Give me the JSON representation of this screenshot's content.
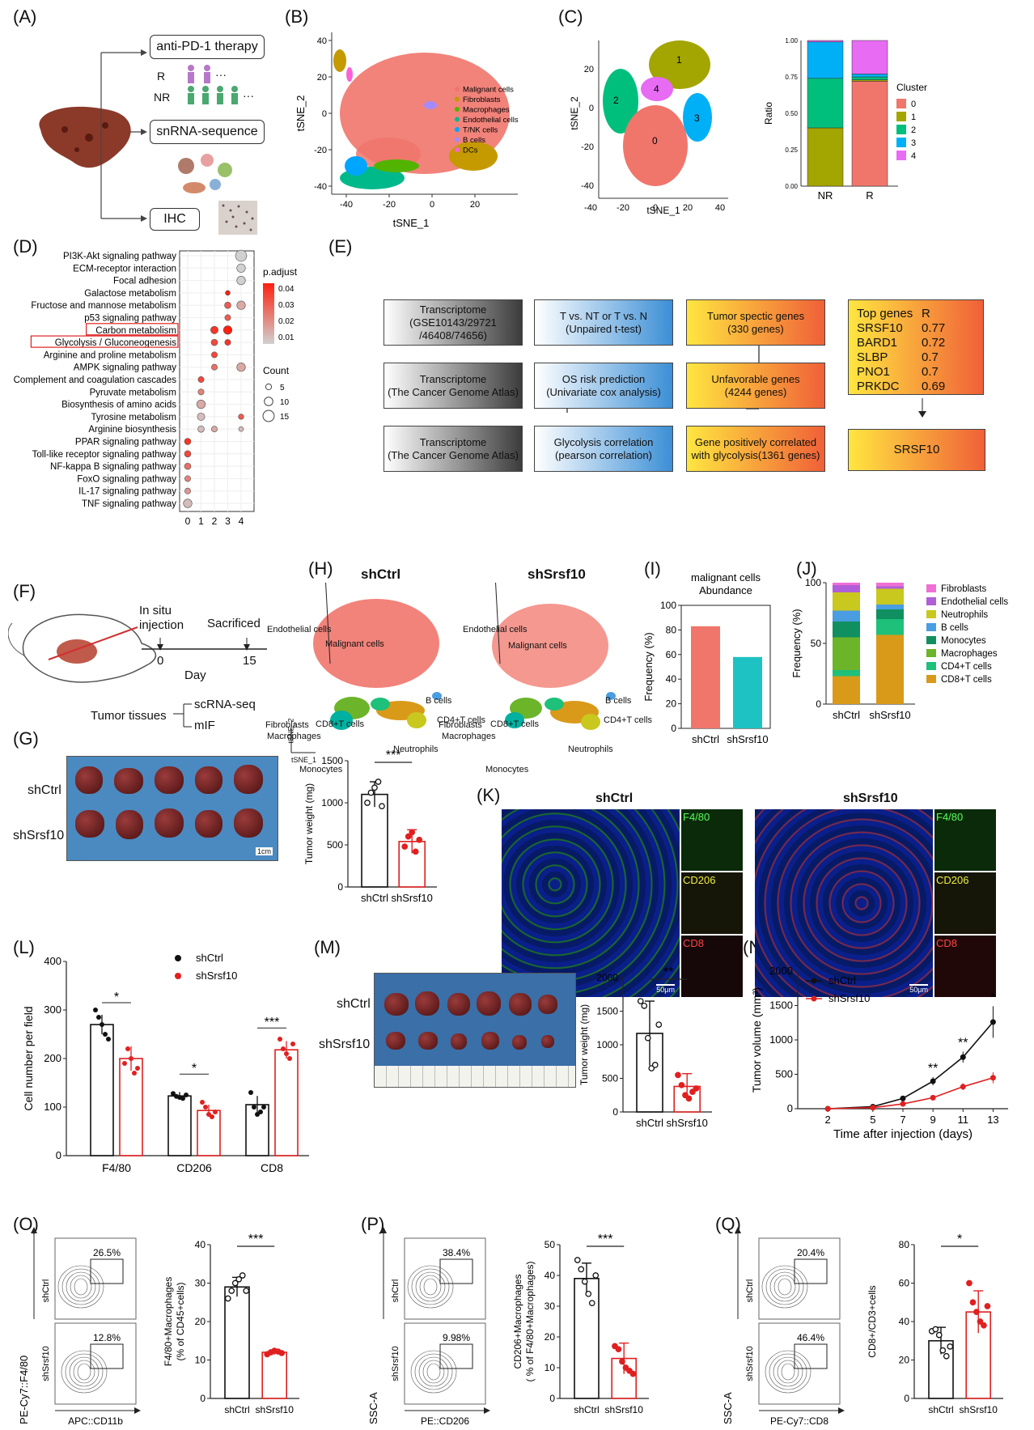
{
  "labels": {
    "A": "(A)",
    "B": "(B)",
    "C": "(C)",
    "D": "(D)",
    "E": "(E)",
    "F": "(F)",
    "G": "(G)",
    "H": "(H)",
    "I": "(I)",
    "J": "(J)",
    "K": "(K)",
    "L": "(L)",
    "M": "(M)",
    "N": "(N)",
    "O": "(O)",
    "P": "(P)",
    "Q": "(Q)"
  },
  "panelA": {
    "box1": "anti-PD-1 therapy",
    "r": "R",
    "nr": "NR",
    "dots": "···",
    "box2": "snRNA-sequence",
    "box3": "IHC"
  },
  "panelB": {
    "xlabel": "tSNE_1",
    "ylabel": "tSNE_2",
    "xticks": [
      "-40",
      "-20",
      "0",
      "20"
    ],
    "yticks": [
      "40",
      "20",
      "0",
      "-20",
      "-40"
    ],
    "legend": [
      {
        "name": "Malignant cells",
        "color": "#f0766b"
      },
      {
        "name": "Fibroblasts",
        "color": "#c49a00"
      },
      {
        "name": "Macrophages",
        "color": "#53b400"
      },
      {
        "name": "Endothelial cells",
        "color": "#00b98b"
      },
      {
        "name": "T/NK cells",
        "color": "#00a5ff"
      },
      {
        "name": "B cells",
        "color": "#a58aff"
      },
      {
        "name": "DCs",
        "color": "#fb61d7"
      }
    ]
  },
  "panelC": {
    "xlabel": "tSNE_1",
    "ylabel": "tSNE_2",
    "xticks": [
      "-40",
      "-20",
      "0",
      "20",
      "40"
    ],
    "yticks": [
      "20",
      "0",
      "-20",
      "-40"
    ],
    "clusters": [
      "0",
      "1",
      "2",
      "3",
      "4"
    ],
    "bar_ylabel": "Ratio",
    "bar_yticks": [
      "1.00",
      "0.75",
      "0.50",
      "0.25",
      "0.00"
    ],
    "legend_title": "Cluster"
  },
  "panelD": {
    "legend_title": "p.adjust",
    "legend_vals": [
      "0.04",
      "0.03",
      "0.02",
      "0.01"
    ],
    "count_title": "Count",
    "count_vals": [
      "5",
      "10",
      "15"
    ],
    "xticks": [
      "0",
      "1",
      "2",
      "3",
      "4"
    ]
  },
  "panelE": {
    "row1": [
      "Transcriptome\n(GSE10143/29721\n/46408/74656)",
      "T vs. NT or T vs. N\n(Unpaired t-test)",
      "Tumor spectic genes\n(330 genes)"
    ],
    "row2": [
      "Transcriptome\n(The Cancer Genome Atlas)",
      "OS risk prediction\n(Univariate cox analysis)",
      "Unfavorable genes\n(4244 genes)"
    ],
    "row3": [
      "Transcriptome\n(The Cancer Genome Atlas)",
      "Glycolysis correlation\n(pearson correlation)",
      "Gene positively correlated\nwith glycolysis(1361 genes)"
    ],
    "top_header": [
      "Top genes",
      "R"
    ],
    "top_genes": [
      [
        "SRSF10",
        "0.77"
      ],
      [
        "BARD1",
        "0.72"
      ],
      [
        "SLBP",
        "0.7"
      ],
      [
        "PNO1",
        "0.7"
      ],
      [
        "PRKDC",
        "0.69"
      ]
    ],
    "result": "SRSF10"
  },
  "panelF": {
    "injection": "In situ\ninjection",
    "sacrificed": "Sacrificed",
    "t0": "0",
    "t15": "15",
    "day": "Day",
    "tissues": "Tumor tissues",
    "scrna": "scRNA-seq",
    "mif": "mIF"
  },
  "panelG": {
    "shctrl": "shCtrl",
    "shsrsf10": "shSrsf10",
    "scale": "1cm",
    "ylabel": "Tumor weight (mg)",
    "yticks": [
      "1500",
      "1000",
      "500",
      "0"
    ],
    "sig": "***",
    "xcats": [
      "shCtrl",
      "shSrsf10"
    ]
  },
  "panelH": {
    "left_title": "shCtrl",
    "right_title": "shSrsf10",
    "labels": [
      "Endothelial cells",
      "Malignant cells",
      "Fibroblasts",
      "Macrophages",
      "B cells",
      "CD4+T cells",
      "CD8+T cells",
      "Monocytes",
      "Neutrophils"
    ],
    "axis_y": "tSNE_2",
    "axis_x": "tSNE_1"
  },
  "panelI": {
    "title": "malignant cells\nAbundance",
    "ylabel": "Frequency (%)",
    "yticks": [
      "100",
      "80",
      "60",
      "40",
      "20",
      "0"
    ],
    "xcats": [
      "shCtrl",
      "shSrsf10"
    ]
  },
  "panelJ": {
    "ylabel": "Frequency (%)",
    "yticks": [
      "100",
      "50",
      "0"
    ],
    "xcats": [
      "shCtrl",
      "shSrsf10"
    ],
    "legend": [
      {
        "name": "Fibroblasts",
        "color": "#f06fd4"
      },
      {
        "name": "Endothelial cells",
        "color": "#b05fd8"
      },
      {
        "name": "Neutrophils",
        "color": "#c8c81e"
      },
      {
        "name": "B cells",
        "color": "#4a9de0"
      },
      {
        "name": "Monocytes",
        "color": "#109060"
      },
      {
        "name": "Macrophages",
        "color": "#6cb42a"
      },
      {
        "name": "CD4+T cells",
        "color": "#1ec07a"
      },
      {
        "name": "CD8+T cells",
        "color": "#d99a1a"
      }
    ]
  },
  "panelK": {
    "left_title": "shCtrl",
    "right_title": "shSrsf10",
    "f480": "F4/80",
    "cd206": "CD206",
    "cd8": "CD8",
    "scale": "50μm"
  },
  "panelL": {
    "ylabel": "Cell number per field",
    "yticks": [
      "400",
      "300",
      "200",
      "100",
      "0"
    ],
    "xcats": [
      "F4/80",
      "CD206",
      "CD8"
    ],
    "legend": [
      "shCtrl",
      "shSrsf10"
    ],
    "sigs": [
      "*",
      "*",
      "***"
    ]
  },
  "panelM": {
    "shctrl": "shCtrl",
    "shsrsf10": "shSrsf10",
    "ylabel": "Tumor weight (mg)",
    "yticks": [
      "2000",
      "1500",
      "1000",
      "500",
      "0"
    ],
    "sig": "**",
    "xcats": [
      "shCtrl",
      "shSrsf10"
    ]
  },
  "panelN": {
    "ylabel": "Tumor volume (mm³)",
    "xlabel": "Time after injection (days)",
    "yticks": [
      "2000",
      "1500",
      "1000",
      "500",
      "0"
    ],
    "xticks": [
      "2",
      "5",
      "7",
      "9",
      "11",
      "13"
    ],
    "legend": [
      "shCtrl",
      "shSrsf10"
    ],
    "sigs": [
      "**",
      "**",
      "*"
    ]
  },
  "panelO": {
    "ylabel": "PE-Cy7::F4/80",
    "xlabel": "APC::CD11b",
    "top_row": "shCtrl",
    "bottom_row": "shSrsf10",
    "pct1": "26.5%",
    "pct2": "12.8%",
    "bar_ylabel": "F4/80+Macrophages\n(% of CD45+cells)",
    "yticks": [
      "40",
      "30",
      "20",
      "10",
      "0"
    ],
    "sig": "***",
    "xcats": [
      "shCtrl",
      "shSrsf10"
    ]
  },
  "panelP": {
    "ylabel": "SSC-A",
    "xlabel": "PE::CD206",
    "top_row": "shCtrl",
    "bottom_row": "shSrsf10",
    "pct1": "38.4%",
    "pct2": "9.98%",
    "bar_ylabel": "CD206+Macrophages\n( % of F4/80+Macrophages)",
    "yticks": [
      "50",
      "40",
      "30",
      "20",
      "10",
      "0"
    ],
    "sig": "***",
    "xcats": [
      "shCtrl",
      "shSrsf10"
    ]
  },
  "panelQ": {
    "ylabel": "SSC-A",
    "xlabel": "PE-Cy7::CD8",
    "top_row": "shCtrl",
    "bottom_row": "shSrsf10",
    "pct1": "20.4%",
    "pct2": "46.4%",
    "bar_ylabel": "CD8+/CD3+cells",
    "yticks": [
      "80",
      "60",
      "40",
      "20",
      "0"
    ],
    "sig": "*",
    "xcats": [
      "shCtrl",
      "shSrsf10"
    ]
  },
  "chart_data": [
    {
      "type": "bar",
      "panel": "C-right",
      "categories": [
        "NR",
        "R"
      ],
      "ylabel": "Ratio",
      "ylim": [
        0,
        1
      ],
      "series": [
        {
          "name": "0",
          "values": [
            0,
            0.72
          ]
        },
        {
          "name": "1",
          "values": [
            0.4,
            0.01
          ]
        },
        {
          "name": "2",
          "values": [
            0.34,
            0.02
          ]
        },
        {
          "name": "3",
          "values": [
            0.25,
            0.02
          ]
        },
        {
          "name": "4",
          "values": [
            0.01,
            0.23
          ]
        }
      ],
      "colors": [
        "#f0766b",
        "#a3a500",
        "#00bf7d",
        "#00b0f6",
        "#e76bf3"
      ]
    },
    {
      "type": "scatter",
      "panel": "D",
      "xticks": [
        "0",
        "1",
        "2",
        "3",
        "4"
      ],
      "categories": [
        "PI3K-Akt signaling pathway",
        "ECM-receptor interaction",
        "Focal adhesion",
        "Galactose metabolism",
        "Fructose and mannose metabolism",
        "p53 signaling pathway",
        "Carbon metabolism",
        "Glycolysis / Gluconeogenesis",
        "Arginine and proline metabolism",
        "AMPK signaling pathway",
        "Complement and coagulation cascades",
        "Pyruvate metabolism",
        "Biosynthesis of amino acids",
        "Tyrosine metabolism",
        "Arginine biosynthesis",
        "PPAR signaling pathway",
        "Toll-like receptor signaling pathway",
        "NF-kappa B signaling pathway",
        "FoxO signaling pathway",
        "IL-17 signaling pathway",
        "TNF signaling pathway"
      ],
      "highlighted": [
        "Carbon metabolism",
        "Glycolysis / Gluconeogenesis"
      ],
      "points": [
        {
          "row": 0,
          "x": 4,
          "count": 15,
          "p": 0.0
        },
        {
          "row": 1,
          "x": 4,
          "count": 10,
          "p": 0.0
        },
        {
          "row": 2,
          "x": 4,
          "count": 10,
          "p": 0.0
        },
        {
          "row": 3,
          "x": 3,
          "count": 3,
          "p": 0.045
        },
        {
          "row": 4,
          "x": 3,
          "count": 6,
          "p": 0.03
        },
        {
          "row": 4,
          "x": 4,
          "count": 10,
          "p": 0.01
        },
        {
          "row": 5,
          "x": 3,
          "count": 5,
          "p": 0.03
        },
        {
          "row": 6,
          "x": 2,
          "count": 8,
          "p": 0.04
        },
        {
          "row": 6,
          "x": 3,
          "count": 10,
          "p": 0.045
        },
        {
          "row": 7,
          "x": 2,
          "count": 6,
          "p": 0.035
        },
        {
          "row": 7,
          "x": 3,
          "count": 5,
          "p": 0.04
        },
        {
          "row": 8,
          "x": 2,
          "count": 5,
          "p": 0.035
        },
        {
          "row": 9,
          "x": 2,
          "count": 5,
          "p": 0.025
        },
        {
          "row": 9,
          "x": 4,
          "count": 10,
          "p": 0.01
        },
        {
          "row": 10,
          "x": 1,
          "count": 5,
          "p": 0.035
        },
        {
          "row": 11,
          "x": 1,
          "count": 5,
          "p": 0.02
        },
        {
          "row": 12,
          "x": 1,
          "count": 10,
          "p": 0.01
        },
        {
          "row": 13,
          "x": 1,
          "count": 8,
          "p": 0.005
        },
        {
          "row": 13,
          "x": 4,
          "count": 4,
          "p": 0.03
        },
        {
          "row": 14,
          "x": 1,
          "count": 6,
          "p": 0.005
        },
        {
          "row": 14,
          "x": 2,
          "count": 5,
          "p": 0.01
        },
        {
          "row": 14,
          "x": 4,
          "count": 3,
          "p": 0.005
        },
        {
          "row": 15,
          "x": 0,
          "count": 6,
          "p": 0.04
        },
        {
          "row": 16,
          "x": 0,
          "count": 6,
          "p": 0.035
        },
        {
          "row": 17,
          "x": 0,
          "count": 6,
          "p": 0.025
        },
        {
          "row": 18,
          "x": 0,
          "count": 5,
          "p": 0.02
        },
        {
          "row": 19,
          "x": 0,
          "count": 5,
          "p": 0.015
        },
        {
          "row": 20,
          "x": 0,
          "count": 10,
          "p": 0.005
        }
      ]
    },
    {
      "type": "bar",
      "panel": "G",
      "categories": [
        "shCtrl",
        "shSrsf10"
      ],
      "values": [
        1100,
        540
      ],
      "errors": [
        150,
        140
      ],
      "ylim": [
        0,
        1500
      ],
      "points": [
        [
          1000,
          1120,
          1180,
          1250,
          960
        ],
        [
          480,
          600,
          650,
          420,
          560
        ]
      ]
    },
    {
      "type": "bar",
      "panel": "I",
      "categories": [
        "shCtrl",
        "shSrsf10"
      ],
      "values": [
        83,
        58
      ],
      "ylim": [
        0,
        100
      ],
      "colors": [
        "#f0766b",
        "#1ec2c2"
      ]
    },
    {
      "type": "bar",
      "panel": "J",
      "categories": [
        "shCtrl",
        "shSrsf10"
      ],
      "ylim": [
        0,
        100
      ],
      "series": [
        {
          "name": "CD8+T cells",
          "values": [
            23,
            57
          ]
        },
        {
          "name": "CD4+T cells",
          "values": [
            5,
            13
          ]
        },
        {
          "name": "Macrophages",
          "values": [
            27,
            0
          ]
        },
        {
          "name": "Monocytes",
          "values": [
            13,
            8
          ]
        },
        {
          "name": "B cells",
          "values": [
            9,
            4
          ]
        },
        {
          "name": "Neutrophils",
          "values": [
            15,
            13
          ]
        },
        {
          "name": "Endothelial cells",
          "values": [
            6,
            2
          ]
        },
        {
          "name": "Fibroblasts",
          "values": [
            2,
            3
          ]
        }
      ]
    },
    {
      "type": "bar",
      "panel": "L",
      "categories": [
        "F4/80",
        "CD206",
        "CD8"
      ],
      "ylim": [
        0,
        400
      ],
      "series": [
        {
          "name": "shCtrl",
          "values": [
            270,
            123,
            105
          ],
          "errors": [
            20,
            8,
            18
          ]
        },
        {
          "name": "shSrsf10",
          "values": [
            200,
            93,
            218
          ],
          "errors": [
            25,
            12,
            18
          ]
        }
      ]
    },
    {
      "type": "bar",
      "panel": "M",
      "categories": [
        "shCtrl",
        "shSrsf10"
      ],
      "values": [
        1170,
        380
      ],
      "errors": [
        480,
        190
      ],
      "ylim": [
        0,
        2000
      ],
      "points": [
        [
          1650,
          1580,
          1100,
          650,
          700,
          1300
        ],
        [
          550,
          400,
          250,
          200,
          300,
          350
        ]
      ]
    },
    {
      "type": "line",
      "panel": "N",
      "x": [
        2,
        5,
        7,
        9,
        11,
        13
      ],
      "ylim": [
        0,
        2000
      ],
      "series": [
        {
          "name": "shCtrl",
          "values": [
            0,
            30,
            150,
            400,
            750,
            1260
          ],
          "errors": [
            0,
            10,
            30,
            60,
            80,
            230
          ]
        },
        {
          "name": "shSrsf10",
          "values": [
            0,
            15,
            70,
            160,
            320,
            450
          ],
          "errors": [
            0,
            5,
            15,
            25,
            50,
            80
          ]
        }
      ]
    },
    {
      "type": "bar",
      "panel": "O",
      "categories": [
        "shCtrl",
        "shSrsf10"
      ],
      "values": [
        29,
        12
      ],
      "errors": [
        2.5,
        0.6
      ],
      "ylim": [
        0,
        40
      ],
      "points": [
        [
          26,
          28,
          30,
          31,
          32,
          28
        ],
        [
          11.5,
          12,
          12.4,
          12.2,
          11.8
        ]
      ]
    },
    {
      "type": "bar",
      "panel": "P",
      "categories": [
        "shCtrl",
        "shSrsf10"
      ],
      "values": [
        39,
        13
      ],
      "errors": [
        5,
        5
      ],
      "ylim": [
        0,
        50
      ],
      "points": [
        [
          45,
          42,
          38,
          34,
          31,
          40
        ],
        [
          17,
          16,
          12,
          10,
          9,
          8
        ]
      ]
    },
    {
      "type": "bar",
      "panel": "Q",
      "categories": [
        "shCtrl",
        "shSrsf10"
      ],
      "values": [
        30,
        45
      ],
      "errors": [
        7,
        11
      ],
      "ylim": [
        0,
        80
      ],
      "points": [
        [
          35,
          36,
          33,
          25,
          22,
          27
        ],
        [
          60,
          50,
          45,
          40,
          38,
          48
        ]
      ]
    }
  ]
}
